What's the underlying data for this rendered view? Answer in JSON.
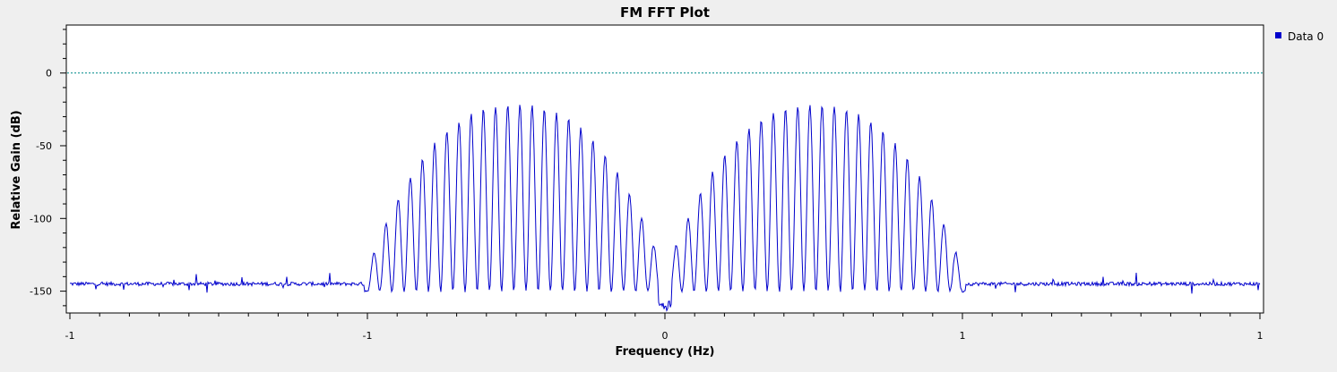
{
  "chart_data": {
    "type": "line",
    "title": "FM FFT Plot",
    "xlabel": "Frequency (Hz)",
    "ylabel": "Relative Gain (dB)",
    "x_tick_labels": [
      "-1",
      "-1",
      "0",
      "1",
      "1"
    ],
    "y_ticks": [
      0,
      -50,
      -100,
      -150
    ],
    "y_tick_labels": [
      "0",
      "-50",
      "-100",
      "-150"
    ],
    "ylim": [
      -165,
      33
    ],
    "reference_line": 0,
    "grid": false,
    "legend_position": "top-right",
    "series": [
      {
        "name": "Data 0",
        "color": "#0000cc",
        "description_points": {
          "noise_floor": -145,
          "peak_level": -22,
          "null_level": -150,
          "center_dip": -164,
          "lobe_peak_count_per_side": 24
        }
      }
    ],
    "reference_line_color": "#008b8b"
  }
}
